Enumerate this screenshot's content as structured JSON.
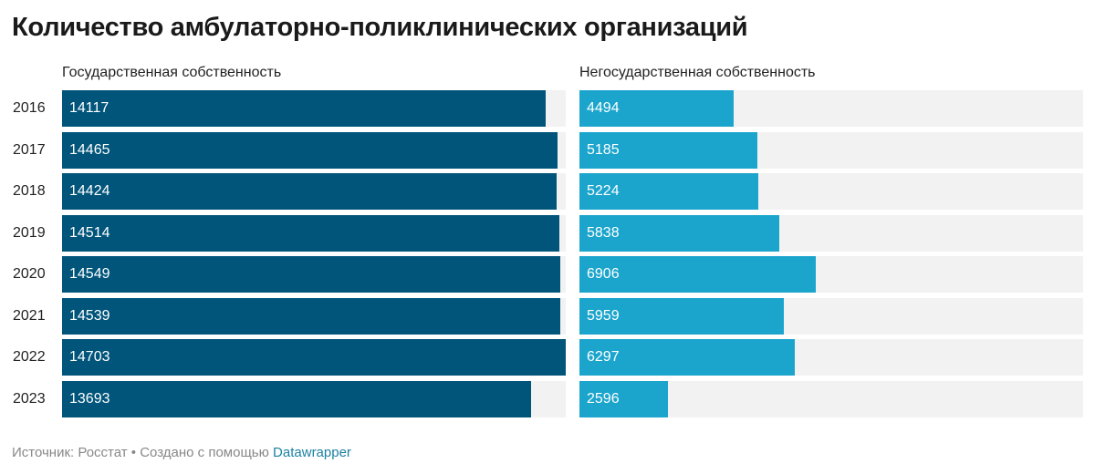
{
  "title": "Количество амбулаторно-поликлинических организаций",
  "chart_data": {
    "type": "bar",
    "title": "Количество амбулаторно-поликлинических организаций",
    "categories": [
      "2016",
      "2017",
      "2018",
      "2019",
      "2020",
      "2021",
      "2022",
      "2023"
    ],
    "xlim": [
      0,
      14703
    ],
    "series": [
      {
        "name": "Государственная собственность",
        "color": "#01557b",
        "values": [
          14117,
          14465,
          14424,
          14514,
          14549,
          14539,
          14703,
          13693
        ]
      },
      {
        "name": "Негосударственная собственность",
        "color": "#1ba5cd",
        "values": [
          4494,
          5185,
          5224,
          5838,
          6906,
          5959,
          6297,
          2596
        ]
      }
    ]
  },
  "footer": {
    "source": "Источник: Росстат • Создано с помощью ",
    "link": "Datawrapper"
  }
}
